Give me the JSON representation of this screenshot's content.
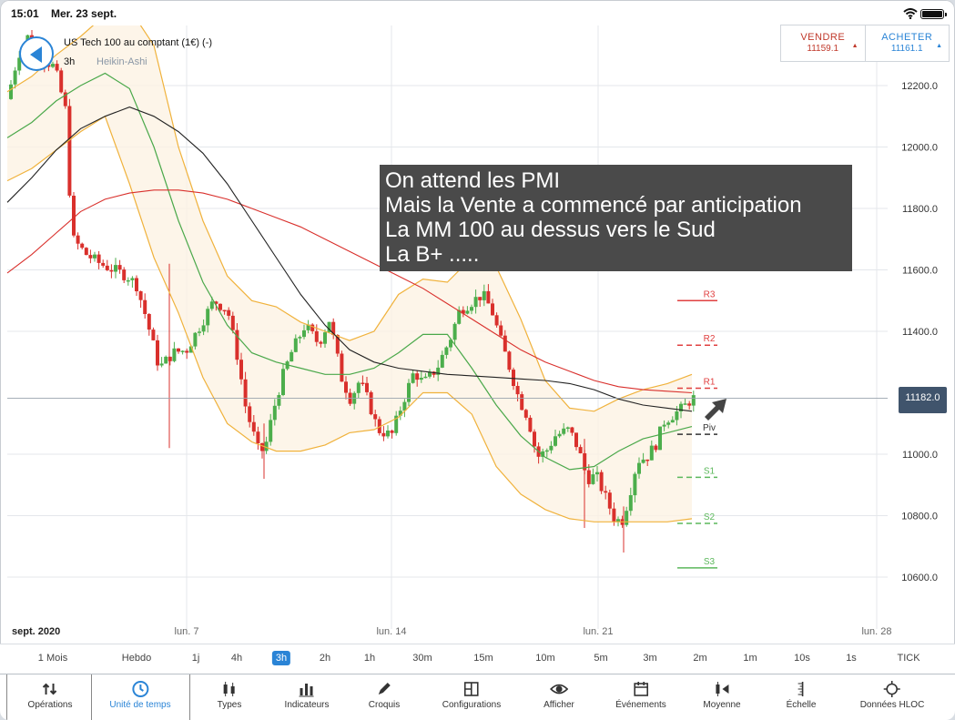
{
  "status_bar": {
    "time": "15:01",
    "date": "Mer. 23 sept."
  },
  "instrument": {
    "name": "US Tech 100 au comptant (1€) (-)",
    "timeframe": "3h",
    "chart_type": "Heikin-Ashi"
  },
  "trade": {
    "sell": {
      "label": "VENDRE",
      "price": "11159.1",
      "color": "#c0392b"
    },
    "buy": {
      "label": "ACHETER",
      "price": "11161.1",
      "color": "#2a84d6"
    }
  },
  "annotation": [
    "On attend les PMI",
    "Mais la Vente a commencé par anticipation",
    "La MM 100 au dessus vers le Sud",
    "La B+ ....."
  ],
  "current_price": "11182.0",
  "chart_data": {
    "type": "candlestick",
    "y_axis": {
      "min": 10450,
      "max": 12450,
      "ticks": [
        12200,
        12000,
        11800,
        11600,
        11400,
        11000,
        10800,
        10600
      ],
      "tick_labels": [
        "12200.0",
        "12000.0",
        "11800.0",
        "11600.0",
        "11400.0",
        "11000.0",
        "10800.0",
        "10600.0"
      ]
    },
    "x_axis": {
      "labels": [
        "sept. 2020",
        "lun. 7",
        "lun. 14",
        "lun. 21",
        "lun. 28"
      ]
    },
    "pivot_levels": [
      {
        "name": "R3",
        "value": 11500,
        "color": "#e04040"
      },
      {
        "name": "R2",
        "value": 11355,
        "color": "#e04040"
      },
      {
        "name": "R1",
        "value": 11215,
        "color": "#e04040"
      },
      {
        "name": "Piv",
        "value": 11065,
        "color": "#333333"
      },
      {
        "name": "S1",
        "value": 10925,
        "color": "#5cb85c"
      },
      {
        "name": "S2",
        "value": 10775,
        "color": "#5cb85c"
      },
      {
        "name": "S3",
        "value": 10630,
        "color": "#5cb85c"
      }
    ],
    "overlays": {
      "ma_black": [
        11820,
        11900,
        11990,
        12060,
        12100,
        12130,
        12100,
        12050,
        11980,
        11880,
        11760,
        11640,
        11520,
        11420,
        11340,
        11300,
        11280,
        11270,
        11260,
        11255,
        11250,
        11245,
        11240,
        11230,
        11210,
        11180,
        11160,
        11150,
        11140
      ],
      "ma_red": [
        11590,
        11650,
        11720,
        11790,
        11830,
        11850,
        11860,
        11860,
        11850,
        11830,
        11800,
        11770,
        11740,
        11700,
        11660,
        11620,
        11580,
        11540,
        11490,
        11440,
        11390,
        11340,
        11300,
        11270,
        11240,
        11220,
        11210,
        11205,
        11200
      ],
      "bb_mid": [
        12030,
        12080,
        12150,
        12200,
        12240,
        12190,
        12000,
        11760,
        11560,
        11420,
        11330,
        11300,
        11280,
        11260,
        11260,
        11280,
        11330,
        11390,
        11390,
        11280,
        11160,
        11060,
        10990,
        10950,
        10960,
        11010,
        11050,
        11070,
        11090
      ],
      "bb_upper": [
        12180,
        12230,
        12300,
        12360,
        12430,
        12450,
        12330,
        12000,
        11760,
        11580,
        11500,
        11480,
        11430,
        11400,
        11370,
        11400,
        11520,
        11570,
        11560,
        11640,
        11610,
        11440,
        11240,
        11150,
        11140,
        11180,
        11210,
        11230,
        11260
      ],
      "bb_lower": [
        11890,
        11930,
        11990,
        12050,
        12100,
        11880,
        11640,
        11460,
        11250,
        11100,
        11040,
        11010,
        11010,
        11030,
        11070,
        11080,
        11120,
        11200,
        11200,
        11130,
        10960,
        10870,
        10820,
        10790,
        10780,
        10780,
        10780,
        10780,
        10790
      ]
    },
    "candles_summary": {
      "first_close": 12050,
      "high": 12380,
      "low": 10680,
      "last_close": 11182
    }
  },
  "period_bar": [
    "1 Mois",
    "Hebdo",
    "1j",
    "4h",
    "3h",
    "2h",
    "1h",
    "30m",
    "15m",
    "10m",
    "5m",
    "3m",
    "2m",
    "1m",
    "10s",
    "1s",
    "TICK"
  ],
  "active_period": "3h",
  "toolbar": [
    {
      "label": "Opérations",
      "icon": "operations-icon"
    },
    {
      "label": "Unité de temps",
      "icon": "clock-icon"
    },
    {
      "label": "Types",
      "icon": "candles-icon"
    },
    {
      "label": "Indicateurs",
      "icon": "bar-chart-icon"
    },
    {
      "label": "Croquis",
      "icon": "pencil-icon"
    },
    {
      "label": "Configurations",
      "icon": "layout-icon"
    },
    {
      "label": "Afficher",
      "icon": "eye-icon"
    },
    {
      "label": "Événements",
      "icon": "calendar-icon"
    },
    {
      "label": "Moyenne",
      "icon": "average-icon"
    },
    {
      "label": "Échelle",
      "icon": "scale-icon"
    },
    {
      "label": "Données HLOC",
      "icon": "crosshair-icon"
    }
  ]
}
